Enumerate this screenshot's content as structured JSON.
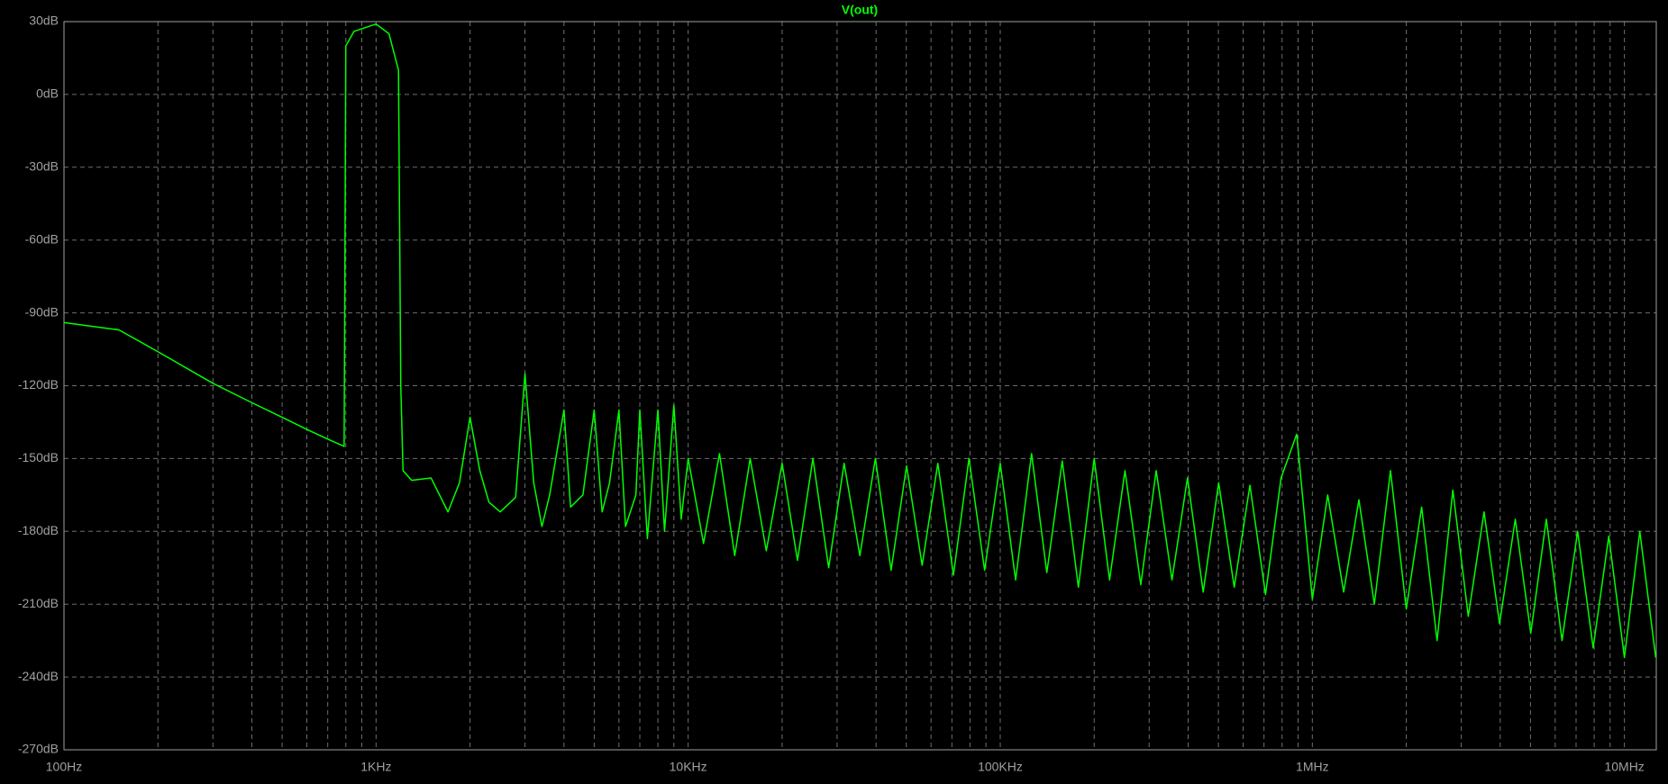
{
  "chart_data": {
    "type": "line",
    "xscale": "log",
    "grid": true,
    "series": [
      {
        "name": "V(out)",
        "color": "#00ff00",
        "x": [
          100,
          150,
          200,
          300,
          400,
          500,
          600,
          700,
          790,
          800,
          850,
          1000,
          1100,
          1180,
          1200,
          1220,
          1300,
          1500,
          1700,
          1850,
          2000,
          2150,
          2300,
          2500,
          2800,
          3000,
          3200,
          3400,
          3600,
          4000,
          4200,
          4600,
          5000,
          5300,
          5600,
          6000,
          6300,
          6800,
          7000,
          7400,
          8000,
          8400,
          9000,
          9500,
          10000,
          11200,
          12600,
          14100,
          15800,
          17800,
          20000,
          22400,
          25100,
          28200,
          31600,
          35500,
          39800,
          44700,
          50100,
          56200,
          63100,
          70800,
          79400,
          89100,
          100000,
          112000,
          126000,
          141000,
          158000,
          178000,
          200000,
          224000,
          251000,
          282000,
          316000,
          355000,
          398000,
          447000,
          501000,
          562000,
          631000,
          708000,
          794000,
          891000,
          1000000,
          1120000,
          1260000,
          1410000,
          1580000,
          1780000,
          2000000,
          2240000,
          2510000,
          2820000,
          3160000,
          3550000,
          3980000,
          4470000,
          5010000,
          5620000,
          6310000,
          7080000,
          7940000,
          8910000,
          10000000,
          11200000,
          12600000
        ],
        "values": [
          -94,
          -97,
          -106,
          -119,
          -127,
          -133,
          -138,
          -142,
          -145,
          20,
          26,
          29,
          25,
          10,
          -120,
          -155,
          -159,
          -158,
          -172,
          -160,
          -133,
          -155,
          -168,
          -172,
          -166,
          -115,
          -160,
          -178,
          -165,
          -130,
          -170,
          -165,
          -130,
          -172,
          -160,
          -130,
          -178,
          -165,
          -130,
          -183,
          -130,
          -180,
          -128,
          -175,
          -150,
          -185,
          -148,
          -190,
          -150,
          -188,
          -152,
          -192,
          -150,
          -195,
          -152,
          -190,
          -150,
          -196,
          -153,
          -194,
          -152,
          -198,
          -150,
          -196,
          -152,
          -200,
          -148,
          -197,
          -151,
          -203,
          -150,
          -200,
          -155,
          -202,
          -155,
          -200,
          -158,
          -205,
          -160,
          -203,
          -161,
          -206,
          -158,
          -140,
          -208,
          -165,
          -205,
          -167,
          -210,
          -155,
          -212,
          -170,
          -225,
          -163,
          -215,
          -172,
          -218,
          -175,
          -222,
          -175,
          -225,
          -180,
          -228,
          -182,
          -232,
          -180,
          -232
        ]
      }
    ],
    "xlim": [
      100,
      12650000
    ],
    "xticks": [
      {
        "value": 100,
        "label": "100Hz"
      },
      {
        "value": 1000,
        "label": "1KHz"
      },
      {
        "value": 10000,
        "label": "10KHz"
      },
      {
        "value": 100000,
        "label": "100KHz"
      },
      {
        "value": 1000000,
        "label": "1MHz"
      },
      {
        "value": 10000000,
        "label": "10MHz"
      }
    ],
    "xminorticks": [
      200,
      300,
      400,
      500,
      600,
      700,
      800,
      900,
      2000,
      3000,
      4000,
      5000,
      6000,
      7000,
      8000,
      9000,
      20000,
      30000,
      40000,
      50000,
      60000,
      70000,
      80000,
      90000,
      200000,
      300000,
      400000,
      500000,
      600000,
      700000,
      800000,
      900000,
      2000000,
      3000000,
      4000000,
      5000000,
      6000000,
      7000000,
      8000000,
      9000000
    ],
    "ylim": [
      -270,
      30
    ],
    "yticks": [
      {
        "value": 30,
        "label": "30dB"
      },
      {
        "value": 0,
        "label": "0dB"
      },
      {
        "value": -30,
        "label": "-30dB"
      },
      {
        "value": -60,
        "label": "-60dB"
      },
      {
        "value": -90,
        "label": "-90dB"
      },
      {
        "value": -120,
        "label": "-120dB"
      },
      {
        "value": -150,
        "label": "-150dB"
      },
      {
        "value": -180,
        "label": "-180dB"
      },
      {
        "value": -210,
        "label": "-210dB"
      },
      {
        "value": -240,
        "label": "-240dB"
      },
      {
        "value": -270,
        "label": "-270dB"
      }
    ]
  }
}
